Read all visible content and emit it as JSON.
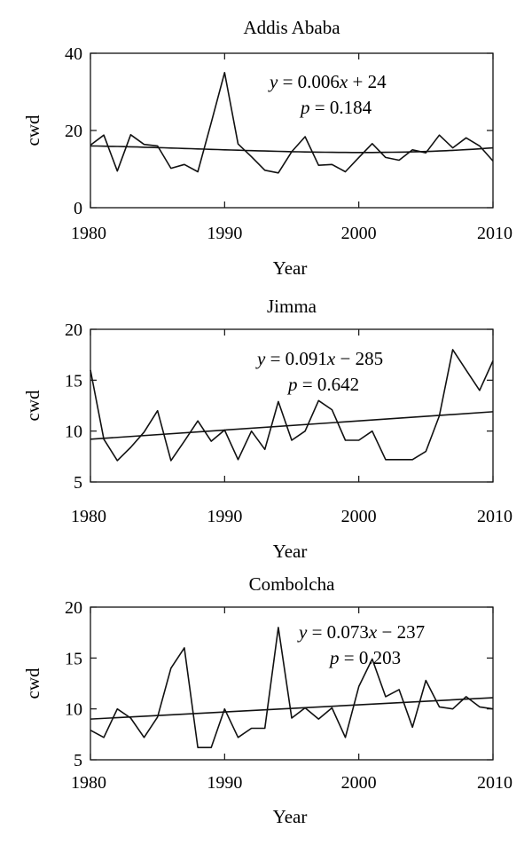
{
  "chart_data": [
    {
      "type": "line",
      "title": "Addis Ababa",
      "xlabel": "Year",
      "ylabel": "cwd",
      "xlim": [
        1980,
        2010
      ],
      "ylim": [
        0,
        40
      ],
      "xticks": [
        1980,
        1990,
        2000,
        2010
      ],
      "yticks": [
        0,
        20,
        40
      ],
      "grid": false,
      "x": [
        1980,
        1981,
        1982,
        1983,
        1984,
        1985,
        1986,
        1987,
        1988,
        1989,
        1990,
        1991,
        1992,
        1993,
        1994,
        1995,
        1996,
        1997,
        1998,
        1999,
        2000,
        2001,
        2002,
        2003,
        2004,
        2005,
        2006,
        2007,
        2008,
        2009,
        2010
      ],
      "series": [
        {
          "values": [
            16.2,
            18.8,
            9.5,
            18.9,
            16.4,
            16.0,
            10.2,
            11.2,
            9.3,
            22.0,
            35.0,
            16.5,
            13.2,
            9.7,
            9.0,
            14.5,
            18.4,
            11.0,
            11.2,
            9.3,
            13.0,
            16.6,
            13.0,
            12.3,
            15.0,
            14.2,
            18.8,
            15.5,
            18.1,
            16.0,
            12.1
          ]
        }
      ],
      "trend": {
        "type": "quadratic",
        "values": [
          16.0,
          15.0,
          14.3,
          15.5
        ]
      },
      "equation_line1_y": "y",
      "equation_line1_rest": " = 0.006",
      "equation_line1_x": "x",
      "equation_line1_tail": " + 24",
      "equation_line2_p": "p",
      "equation_line2_rest": " = 0.184"
    },
    {
      "type": "line",
      "title": "Jimma",
      "xlabel": "Year",
      "ylabel": "cwd",
      "xlim": [
        1980,
        2010
      ],
      "ylim": [
        5,
        20
      ],
      "xticks": [
        1980,
        1990,
        2000,
        2010
      ],
      "yticks": [
        5,
        10,
        15,
        20
      ],
      "grid": false,
      "x": [
        1980,
        1981,
        1982,
        1983,
        1984,
        1985,
        1986,
        1987,
        1988,
        1989,
        1990,
        1991,
        1992,
        1993,
        1994,
        1995,
        1996,
        1997,
        1998,
        1999,
        2000,
        2001,
        2002,
        2003,
        2004,
        2005,
        2006,
        2007,
        2008,
        2009,
        2010
      ],
      "series": [
        {
          "values": [
            16.0,
            9.2,
            7.1,
            8.4,
            9.9,
            12.0,
            7.1,
            9.0,
            11.0,
            9.0,
            10.1,
            7.2,
            10.0,
            8.2,
            12.9,
            9.1,
            10.0,
            13.0,
            12.1,
            9.1,
            9.1,
            10.0,
            7.2,
            7.2,
            7.2,
            8.0,
            11.5,
            18.0,
            16.0,
            14.0,
            16.9
          ]
        }
      ],
      "trend": {
        "type": "linear",
        "values": [
          9.2,
          11.9
        ]
      },
      "equation_line1_y": "y",
      "equation_line1_rest": " = 0.091",
      "equation_line1_x": "x",
      "equation_line1_tail": " − 285",
      "equation_line2_p": "p",
      "equation_line2_rest": " = 0.642"
    },
    {
      "type": "line",
      "title": "Combolcha",
      "xlabel": "Year",
      "ylabel": "cwd",
      "xlim": [
        1980,
        2010
      ],
      "ylim": [
        5,
        20
      ],
      "xticks": [
        1980,
        1990,
        2000,
        2010
      ],
      "yticks": [
        5,
        10,
        15,
        20
      ],
      "grid": false,
      "x": [
        1980,
        1981,
        1982,
        1983,
        1984,
        1985,
        1986,
        1987,
        1988,
        1989,
        1990,
        1991,
        1992,
        1993,
        1994,
        1995,
        1996,
        1997,
        1998,
        1999,
        2000,
        2001,
        2002,
        2003,
        2004,
        2005,
        2006,
        2007,
        2008,
        2009,
        2010
      ],
      "series": [
        {
          "values": [
            7.9,
            7.2,
            10.0,
            9.1,
            7.2,
            9.2,
            14.0,
            16.0,
            6.2,
            6.2,
            10.0,
            7.2,
            8.1,
            8.1,
            18.0,
            9.1,
            10.1,
            9.0,
            10.1,
            7.2,
            12.2,
            14.9,
            11.2,
            11.9,
            8.2,
            12.8,
            10.2,
            10.0,
            11.2,
            10.2,
            10.0
          ]
        }
      ],
      "trend": {
        "type": "linear",
        "values": [
          9.0,
          11.1
        ]
      },
      "equation_line1_y": "y",
      "equation_line1_rest": " = 0.073",
      "equation_line1_x": "x",
      "equation_line1_tail": " − 237",
      "equation_line2_p": "p",
      "equation_line2_rest": " = 0.203"
    }
  ]
}
